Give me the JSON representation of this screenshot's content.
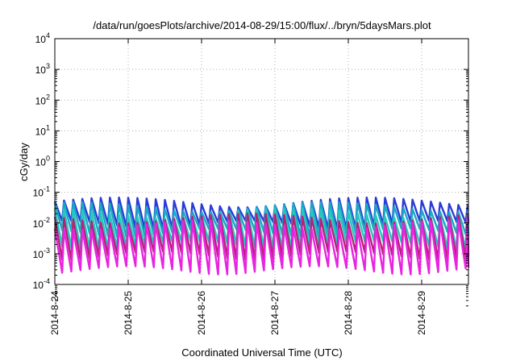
{
  "chart_data": {
    "type": "line",
    "title": "/data/run/goesPlots/archive/2014-08-29/15:00/flux/../bryn/5daysMars.plot",
    "xlabel": "Coordinated Universal Time (UTC)",
    "ylabel": "cGy/day",
    "x_tick_labels": [
      "2014-8-24",
      "2014-8-25",
      "2014-8-26",
      "2014-8-27",
      "2014-8-28",
      "2014-8-29"
    ],
    "y_tick_labels": [
      {
        "base": "10",
        "exp": "4"
      },
      {
        "base": "10",
        "exp": "3"
      },
      {
        "base": "10",
        "exp": "2"
      },
      {
        "base": "10",
        "exp": "1"
      },
      {
        "base": "10",
        "exp": "0"
      },
      {
        "base": "10",
        "exp": "-1"
      },
      {
        "base": "10",
        "exp": "-2"
      },
      {
        "base": "10",
        "exp": "-3"
      },
      {
        "base": "10",
        "exp": "-4"
      }
    ],
    "xlim": [
      "2014-08-24",
      "2014-08-29T15:00"
    ],
    "ylim": [
      0.0001,
      10000
    ],
    "y_scale": "log",
    "grid": true,
    "cycles_per_day": 8,
    "series": [
      {
        "color": "#2a3cd6",
        "peak": 0.05,
        "trough": 0.009
      },
      {
        "color": "#1ba8c4",
        "peak": 0.035,
        "trough": 0.005
      },
      {
        "color": "#23c9c0",
        "peak": 0.022,
        "trough": 0.002
      },
      {
        "color": "#b8207a",
        "peak": 0.015,
        "trough": 0.0009
      },
      {
        "color": "#e824e0",
        "peak": 0.009,
        "trough": 0.0003
      }
    ]
  }
}
